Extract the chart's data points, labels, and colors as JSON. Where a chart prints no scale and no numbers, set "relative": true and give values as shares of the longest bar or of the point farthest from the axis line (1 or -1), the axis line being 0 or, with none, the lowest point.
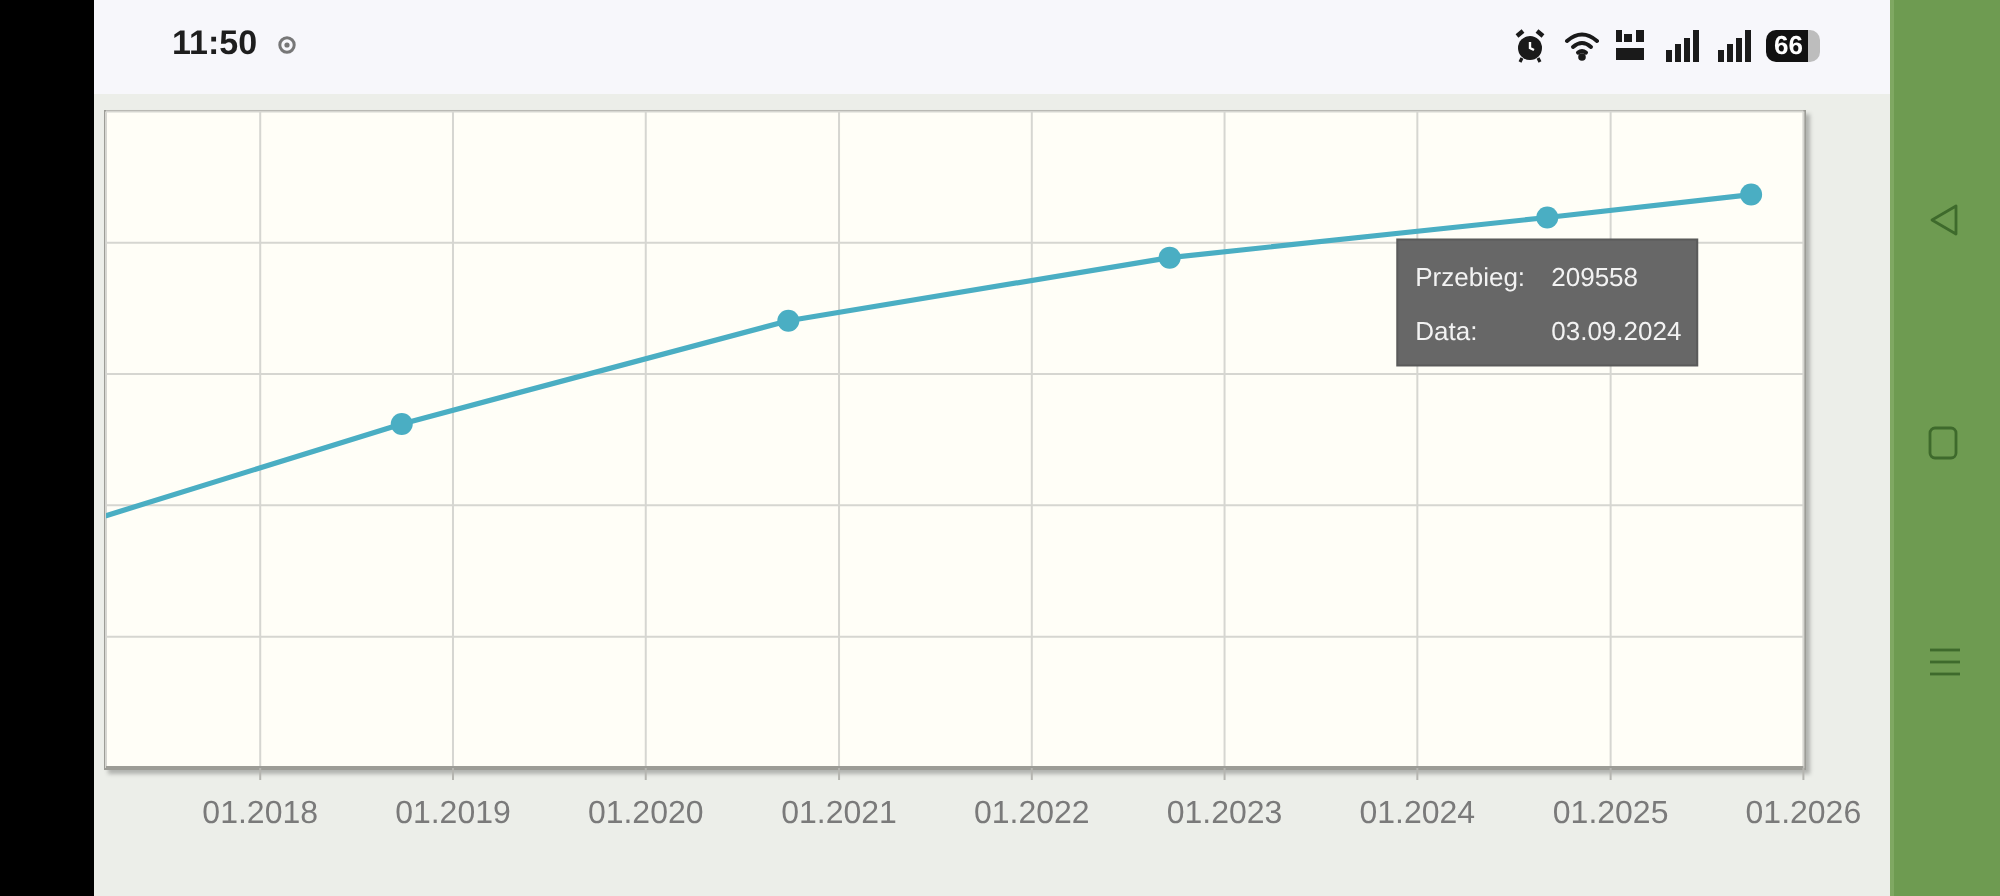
{
  "chart_data": {
    "type": "line",
    "x": [
      "2017-03-15",
      "2018-09-26",
      "2020-09-27",
      "2022-09-19",
      "2024-09-03",
      "2025-09-24"
    ],
    "series": [
      {
        "color": "#4aaec3",
        "values": [
          0.44,
          0.6,
          0.78,
          0.89,
          0.96,
          1
        ]
      }
    ],
    "relative": true,
    "xlim": [
      "2017-03-15",
      "2026-01-01"
    ],
    "xticks": [
      {
        "value": "2018-01",
        "label": "01.2018"
      },
      {
        "value": "2019-01",
        "label": "01.2019"
      },
      {
        "value": "2020-01",
        "label": "01.2020"
      },
      {
        "value": "2021-01",
        "label": "01.2021"
      },
      {
        "value": "2022-01",
        "label": "01.2022"
      },
      {
        "value": "2023-01",
        "label": "01.2023"
      },
      {
        "value": "2024-01",
        "label": "01.2024"
      },
      {
        "value": "2025-01",
        "label": "01.2025"
      },
      {
        "value": "2026-01",
        "label": "01.2026"
      }
    ],
    "grid": true,
    "marker": "circle",
    "annotations": [
      {
        "text": "Przebieg: 209558",
        "x": "2024-09-03",
        "y": 0.96
      },
      "Data: 03.09.2024",
      "11:50",
      "66"
    ]
  }
}
